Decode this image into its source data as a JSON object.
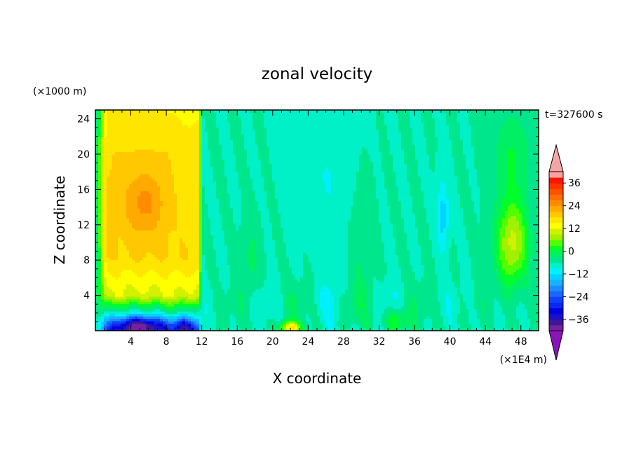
{
  "chart_data": {
    "type": "heatmap",
    "title": "zonal velocity",
    "xlabel": "X coordinate",
    "ylabel": "Z coordinate",
    "x_units": "(×1E4 m)",
    "y_units": "(×1000 m)",
    "time_label": "t=327600 s",
    "xlim": [
      0,
      50
    ],
    "ylim": [
      0,
      25
    ],
    "x_ticks": [
      4,
      8,
      12,
      16,
      20,
      24,
      28,
      32,
      36,
      40,
      44,
      48
    ],
    "x_tick_labels": [
      "4",
      "8",
      "12",
      "16",
      "20",
      "24",
      "28",
      "32",
      "36",
      "40",
      "44",
      "48"
    ],
    "y_ticks": [
      4,
      8,
      12,
      16,
      20,
      24
    ],
    "y_tick_labels": [
      "4",
      "8",
      "12",
      "16",
      "20",
      "24"
    ],
    "colorbar": {
      "levels": [
        -42,
        -39,
        -36,
        -33,
        -30,
        -27,
        -24,
        -21,
        -18,
        -15,
        -12,
        -9,
        -6,
        -3,
        0,
        3,
        6,
        9,
        12,
        15,
        18,
        21,
        24,
        27,
        30,
        33,
        36,
        39,
        42
      ],
      "tick_values": [
        36,
        24,
        12,
        0,
        -12,
        -24,
        -36
      ],
      "tick_labels": [
        "36",
        "24",
        "12",
        "0",
        "−12",
        "−24",
        "−36"
      ],
      "colors": [
        "#7a1fa2",
        "#3a1a9a",
        "#1a10c8",
        "#0000e0",
        "#0b28ee",
        "#1040ff",
        "#1a66ff",
        "#1a8cff",
        "#1ab0ff",
        "#00d2ff",
        "#00f0ff",
        "#00f0c8",
        "#00e68c",
        "#00f064",
        "#00ff2a",
        "#50ff00",
        "#a0f000",
        "#d2f000",
        "#ffff00",
        "#ffe600",
        "#ffc800",
        "#ffaa00",
        "#ff8c00",
        "#ff6e00",
        "#ff5000",
        "#ff3200",
        "#ff1400",
        "#ffa0a0"
      ],
      "over_color": "#f4a6a6",
      "under_color": "#8a14b8"
    },
    "field_summary": [
      {
        "region": "x 1-11, z 5-25",
        "value_range": [
          6,
          24
        ],
        "note": "westerly jet, max ~24 near x 4-7, z 12-17"
      },
      {
        "region": "x 1-11, z 0-4",
        "value_range": [
          -36,
          -9
        ],
        "note": "strong easterly near surface, min ~-36"
      },
      {
        "region": "x 12-44, z 4-25",
        "value_range": [
          -12,
          3
        ],
        "note": "weak flow, bands near -9 and 0"
      },
      {
        "region": "x 38-40, z 9-17",
        "value_range": [
          -18,
          -12
        ],
        "note": "easterly core"
      },
      {
        "region": "x 21-23, z 0-1",
        "value_range": [
          15,
          21
        ],
        "note": "surface westerly"
      },
      {
        "region": "x 45-49, z 6-14",
        "value_range": [
          6,
          15
        ],
        "note": "eastern westerly band"
      }
    ]
  }
}
